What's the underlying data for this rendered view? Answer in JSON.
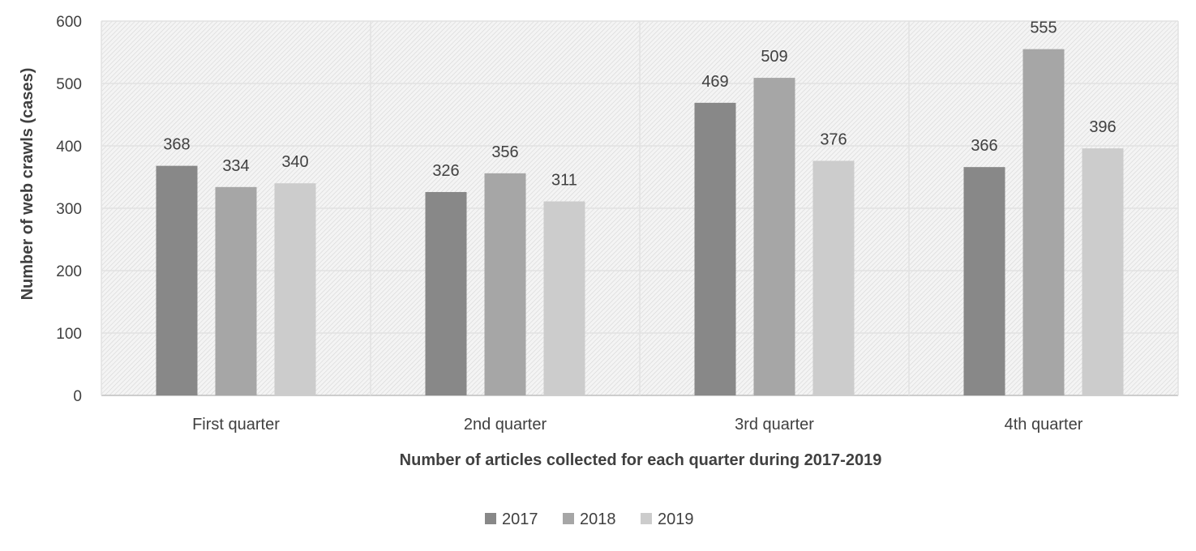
{
  "chart_data": {
    "type": "bar",
    "title": "",
    "xlabel": "Number of articles collected for each quarter during 2017-2019",
    "ylabel": "Number of web crawls (cases)",
    "categories": [
      "First quarter",
      "2nd quarter",
      "3rd quarter",
      "4th quarter"
    ],
    "series": [
      {
        "name": "2017",
        "values": [
          368,
          326,
          469,
          366
        ],
        "color": "#888888"
      },
      {
        "name": "2018",
        "values": [
          334,
          356,
          509,
          555
        ],
        "color": "#a6a6a6"
      },
      {
        "name": "2019",
        "values": [
          340,
          311,
          376,
          396
        ],
        "color": "#cccccc"
      }
    ],
    "ylim": [
      0,
      600
    ],
    "yticks": [
      "0",
      "100",
      "200",
      "300",
      "400",
      "500",
      "600"
    ],
    "grid": true,
    "legend_position": "bottom",
    "plot_background": "hatched-light-gray"
  }
}
